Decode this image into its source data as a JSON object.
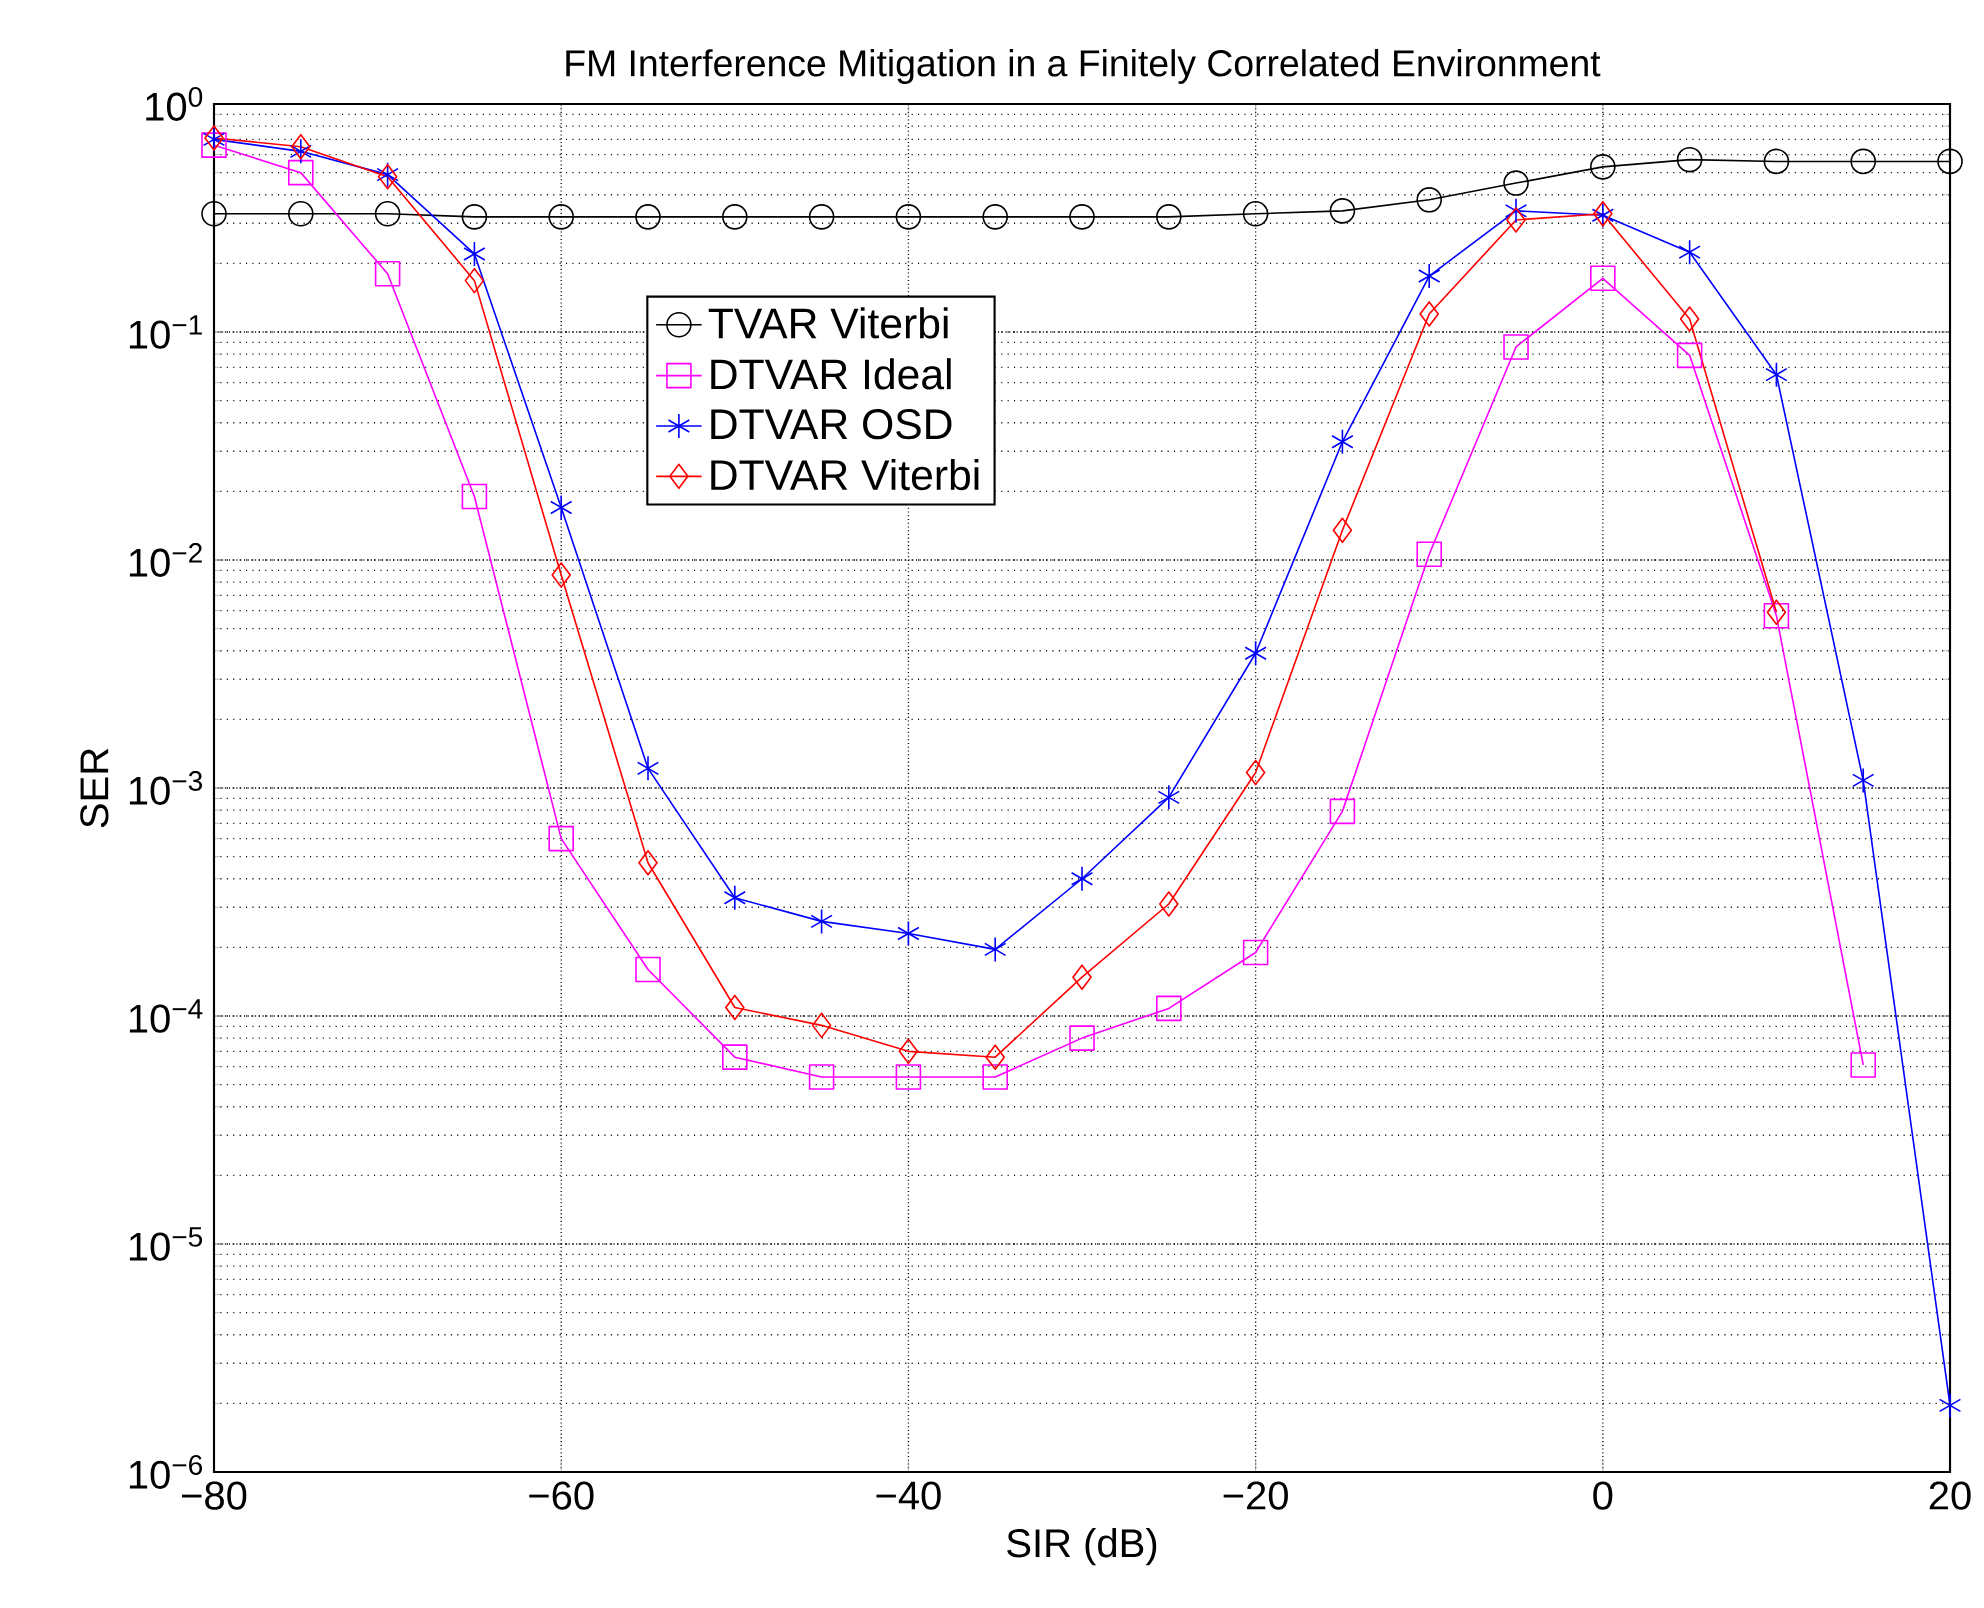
{
  "chart_data": {
    "type": "line",
    "title": "FM Interference Mitigation in a Finitely Correlated Environment",
    "xlabel": "SIR (dB)",
    "ylabel": "SER",
    "x": [
      -80,
      -75,
      -70,
      -65,
      -60,
      -55,
      -50,
      -45,
      -40,
      -35,
      -30,
      -25,
      -20,
      -15,
      -10,
      -5,
      0,
      5,
      10,
      15,
      20
    ],
    "series": [
      {
        "name": "TVAR Viterbi",
        "color": "#000000",
        "marker": "circle",
        "values": [
          0.33,
          0.33,
          0.33,
          0.32,
          0.32,
          0.32,
          0.32,
          0.32,
          0.32,
          0.32,
          0.32,
          0.32,
          0.33,
          0.34,
          0.38,
          0.45,
          0.53,
          0.57,
          0.56,
          0.56,
          0.56
        ]
      },
      {
        "name": "DTVAR Ideal",
        "color": "#ff00ff",
        "marker": "square",
        "values": [
          0.66,
          0.5,
          0.18,
          0.019,
          0.0006,
          0.00016,
          6.6e-05,
          5.4e-05,
          5.4e-05,
          5.4e-05,
          8e-05,
          0.000108,
          0.00019,
          0.00079,
          0.0106,
          0.086,
          0.172,
          0.079,
          0.0057,
          6.1e-05,
          null
        ]
      },
      {
        "name": "DTVAR OSD",
        "color": "#0000ff",
        "marker": "cross",
        "values": [
          0.7,
          0.62,
          0.49,
          0.22,
          0.017,
          0.00122,
          0.00033,
          0.00026,
          0.00023,
          0.000196,
          0.0004,
          0.00091,
          0.0039,
          0.033,
          0.176,
          0.34,
          0.325,
          0.224,
          0.065,
          0.00108,
          1.96e-06
        ]
      },
      {
        "name": "DTVAR Viterbi",
        "color": "#ff0000",
        "marker": "diamond",
        "values": [
          0.71,
          0.65,
          0.48,
          0.168,
          0.0086,
          0.00047,
          0.000109,
          9.1e-05,
          7e-05,
          6.6e-05,
          0.000148,
          0.00031,
          0.00117,
          0.0135,
          0.12,
          0.31,
          0.33,
          0.114,
          0.0059,
          null,
          null
        ]
      }
    ],
    "xlim": [
      -80,
      20
    ],
    "ylim": [
      1e-06,
      1
    ],
    "log": "y",
    "xticks": [
      {
        "value": -80,
        "label": "−80"
      },
      {
        "value": -60,
        "label": "−60"
      },
      {
        "value": -40,
        "label": "−40"
      },
      {
        "value": -20,
        "label": "−20"
      },
      0,
      20
    ],
    "yticks": [
      {
        "value": 1e-06,
        "label": "10$^{−6}$"
      },
      {
        "value": 1e-05,
        "label": "10$^{−5}$"
      },
      {
        "value": 0.0001,
        "label": "10$^{−4}$"
      },
      {
        "value": 0.001,
        "label": "10$^{−3}$"
      },
      {
        "value": 0.01,
        "label": "10$^{−2}$"
      },
      {
        "value": 0.1,
        "label": "10$^{−1}$"
      },
      {
        "value": 1,
        "label": "10$^{0}$"
      }
    ],
    "grid": true,
    "legend": "top",
    "line_style": "solid"
  }
}
